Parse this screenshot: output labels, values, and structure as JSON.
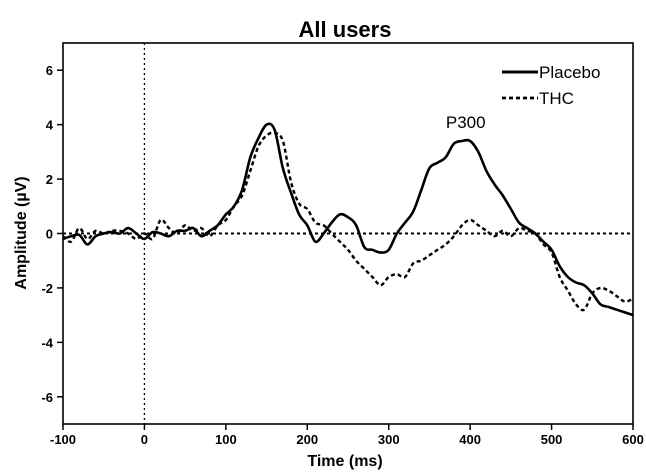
{
  "chart_data": {
    "type": "line",
    "title": "All users",
    "xlabel": "Time (ms)",
    "ylabel": "Amplitude (µV)",
    "xlim": [
      -100,
      600
    ],
    "ylim": [
      -7,
      7
    ],
    "x_ticks": [
      "-100",
      "0",
      "100",
      "200",
      "300",
      "400",
      "500",
      "600"
    ],
    "y_ticks": [
      "-6",
      "-4",
      "-2",
      "0",
      "2",
      "4",
      "6"
    ],
    "legend_position": "top-right",
    "annotations": [
      {
        "text": "P300",
        "x": 370,
        "y": 4.1
      }
    ],
    "reference_lines": [
      {
        "axis": "x",
        "value": 0,
        "style": "dotted"
      },
      {
        "axis": "y",
        "value": 0,
        "style": "dotted"
      }
    ],
    "series": [
      {
        "name": "Placebo",
        "style": "solid",
        "x": [
          -100,
          -90,
          -80,
          -70,
          -60,
          -50,
          -40,
          -30,
          -20,
          -10,
          0,
          10,
          20,
          30,
          40,
          50,
          60,
          70,
          80,
          90,
          100,
          110,
          120,
          130,
          140,
          150,
          160,
          170,
          180,
          190,
          200,
          210,
          220,
          230,
          240,
          250,
          260,
          270,
          280,
          290,
          300,
          310,
          320,
          330,
          340,
          350,
          360,
          370,
          380,
          390,
          400,
          410,
          420,
          430,
          440,
          450,
          460,
          470,
          480,
          490,
          500,
          510,
          520,
          530,
          540,
          550,
          560,
          570,
          580,
          590,
          600
        ],
        "y": [
          -0.2,
          -0.1,
          -0.05,
          -0.4,
          -0.1,
          0.0,
          0.05,
          0.0,
          0.2,
          0.0,
          -0.2,
          0.05,
          0.0,
          -0.1,
          0.1,
          0.1,
          0.2,
          -0.1,
          0.1,
          0.3,
          0.7,
          1.0,
          1.6,
          2.8,
          3.5,
          4.0,
          3.8,
          2.4,
          1.5,
          0.7,
          0.3,
          -0.3,
          0.0,
          0.4,
          0.7,
          0.6,
          0.3,
          -0.5,
          -0.6,
          -0.7,
          -0.6,
          0.0,
          0.4,
          0.8,
          1.6,
          2.4,
          2.6,
          2.8,
          3.3,
          3.4,
          3.4,
          3.0,
          2.3,
          1.8,
          1.4,
          0.9,
          0.4,
          0.2,
          0.0,
          -0.3,
          -0.6,
          -1.2,
          -1.6,
          -1.8,
          -1.9,
          -2.2,
          -2.6,
          -2.7,
          -2.8,
          -2.9,
          -3.0
        ]
      },
      {
        "name": "THC",
        "style": "dashed",
        "x": [
          -100,
          -90,
          -80,
          -70,
          -60,
          -50,
          -40,
          -30,
          -20,
          -10,
          0,
          10,
          20,
          30,
          40,
          50,
          60,
          70,
          80,
          90,
          100,
          110,
          120,
          130,
          140,
          150,
          160,
          170,
          180,
          190,
          200,
          210,
          220,
          230,
          240,
          250,
          260,
          270,
          280,
          290,
          300,
          310,
          320,
          330,
          340,
          350,
          360,
          370,
          380,
          390,
          400,
          410,
          420,
          430,
          440,
          450,
          460,
          470,
          480,
          490,
          500,
          510,
          520,
          530,
          540,
          550,
          560,
          570,
          580,
          590,
          600
        ],
        "y": [
          -0.1,
          -0.3,
          0.2,
          -0.2,
          0.1,
          0.0,
          0.1,
          0.1,
          0.0,
          -0.2,
          0.0,
          -0.2,
          0.5,
          0.2,
          0.0,
          0.3,
          0.1,
          0.2,
          -0.1,
          0.3,
          0.5,
          1.0,
          1.4,
          2.3,
          3.2,
          3.6,
          3.7,
          3.4,
          1.9,
          1.1,
          0.9,
          0.4,
          0.3,
          0.0,
          -0.3,
          -0.6,
          -1.0,
          -1.3,
          -1.6,
          -1.9,
          -1.6,
          -1.5,
          -1.6,
          -1.1,
          -1.0,
          -0.8,
          -0.6,
          -0.4,
          -0.1,
          0.3,
          0.5,
          0.3,
          0.1,
          -0.1,
          0.1,
          -0.1,
          0.2,
          0.1,
          0.0,
          -0.4,
          -0.7,
          -1.6,
          -2.1,
          -2.6,
          -2.8,
          -2.2,
          -2.0,
          -2.1,
          -2.3,
          -2.5,
          -2.4
        ]
      }
    ]
  }
}
